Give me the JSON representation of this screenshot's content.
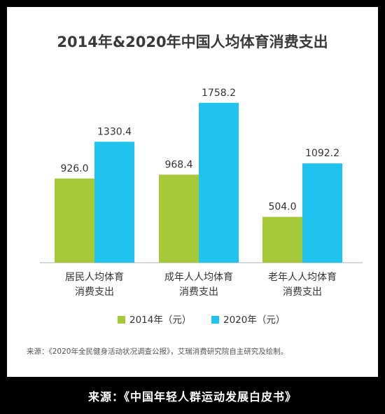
{
  "chart_data": {
    "type": "bar",
    "title": "2014年&2020年中国人均体育消费支出",
    "categories": [
      "居民人均体育消费支出",
      "成年人人均体育消费支出",
      "老年人人均体育消费支出"
    ],
    "category_lines": [
      [
        "居民人均体育",
        "消费支出"
      ],
      [
        "成年人人均体育",
        "消费支出"
      ],
      [
        "老年人人均体育",
        "消费支出"
      ]
    ],
    "series": [
      {
        "name": "2014年（元）",
        "values": [
          926.0,
          968.4,
          504.0
        ],
        "labels": [
          "926.0",
          "968.4",
          "504.0"
        ],
        "color": "#a6c93a"
      },
      {
        "name": "2020年（元）",
        "values": [
          1330.4,
          1758.2,
          1092.2
        ],
        "labels": [
          "1330.4",
          "1758.2",
          "1092.2"
        ],
        "color": "#1fc3ee"
      }
    ],
    "ylim": [
      0,
      2000
    ],
    "grid": false,
    "legend_position": "bottom",
    "xlabel": "",
    "ylabel": ""
  },
  "source_note": "来源：《2020年全民健身活动状况调查公报》，艾瑞消费研究院自主研究及绘制。",
  "caption": "来源：《中国年轻人群运动发展白皮书》"
}
